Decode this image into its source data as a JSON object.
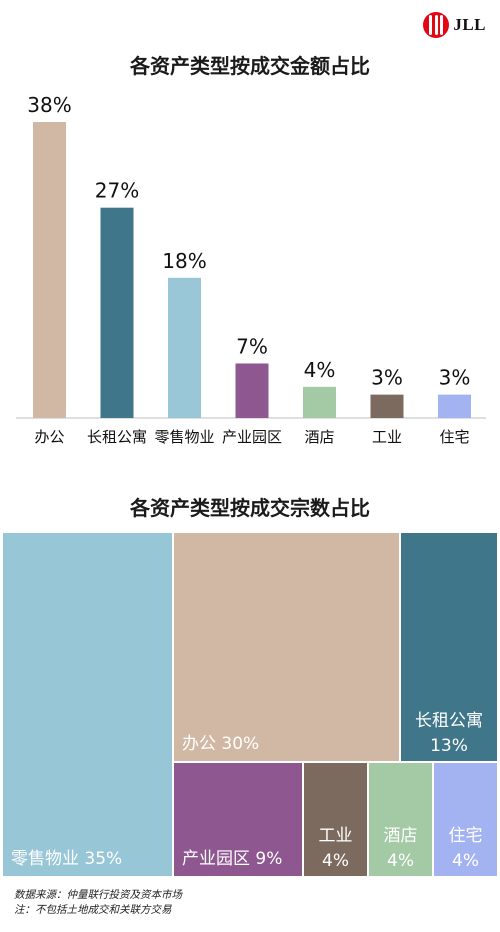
{
  "logo": {
    "text": "JLL"
  },
  "chart_data": [
    {
      "type": "bar",
      "title": "各资产类型按成交金额占比",
      "categories": [
        "办公",
        "长租公寓",
        "零售物业",
        "产业园区",
        "酒店",
        "工业",
        "住宅"
      ],
      "values": [
        38,
        27,
        18,
        7,
        4,
        3,
        3
      ],
      "value_labels": [
        "38%",
        "27%",
        "18%",
        "7%",
        "4%",
        "3%",
        "3%"
      ],
      "colors": [
        "#d1b8a5",
        "#3f7689",
        "#99c7d7",
        "#8e5790",
        "#a3c9a5",
        "#7c6a5e",
        "#a3b3f2"
      ],
      "unit": "%",
      "ylim": [
        0,
        38
      ],
      "grid": false
    },
    {
      "type": "treemap",
      "title": "各资产类型按成交宗数占比",
      "items": [
        {
          "name": "零售物业",
          "value": 35,
          "label": "零售物业 35%",
          "color": "#97c6d7"
        },
        {
          "name": "办公",
          "value": 30,
          "label": "办公 30%",
          "color": "#d1b8a5"
        },
        {
          "name": "长租公寓",
          "value": 13,
          "label": "长租公寓",
          "label2": "13%",
          "color": "#3f7689"
        },
        {
          "name": "产业园区",
          "value": 9,
          "label": "产业园区 9%",
          "color": "#8e5790"
        },
        {
          "name": "工业",
          "value": 4,
          "label": "工业",
          "label2": "4%",
          "color": "#7c6a5e"
        },
        {
          "name": "酒店",
          "value": 4,
          "label": "酒店",
          "label2": "4%",
          "color": "#a3c9a5"
        },
        {
          "name": "住宅",
          "value": 4,
          "label": "住宅",
          "label2": "4%",
          "color": "#a3b3f2"
        }
      ]
    }
  ],
  "source": {
    "line1": "数据来源：仲量联行投资及资本市场",
    "line2": "注：不包括土地成交和关联方交易"
  }
}
